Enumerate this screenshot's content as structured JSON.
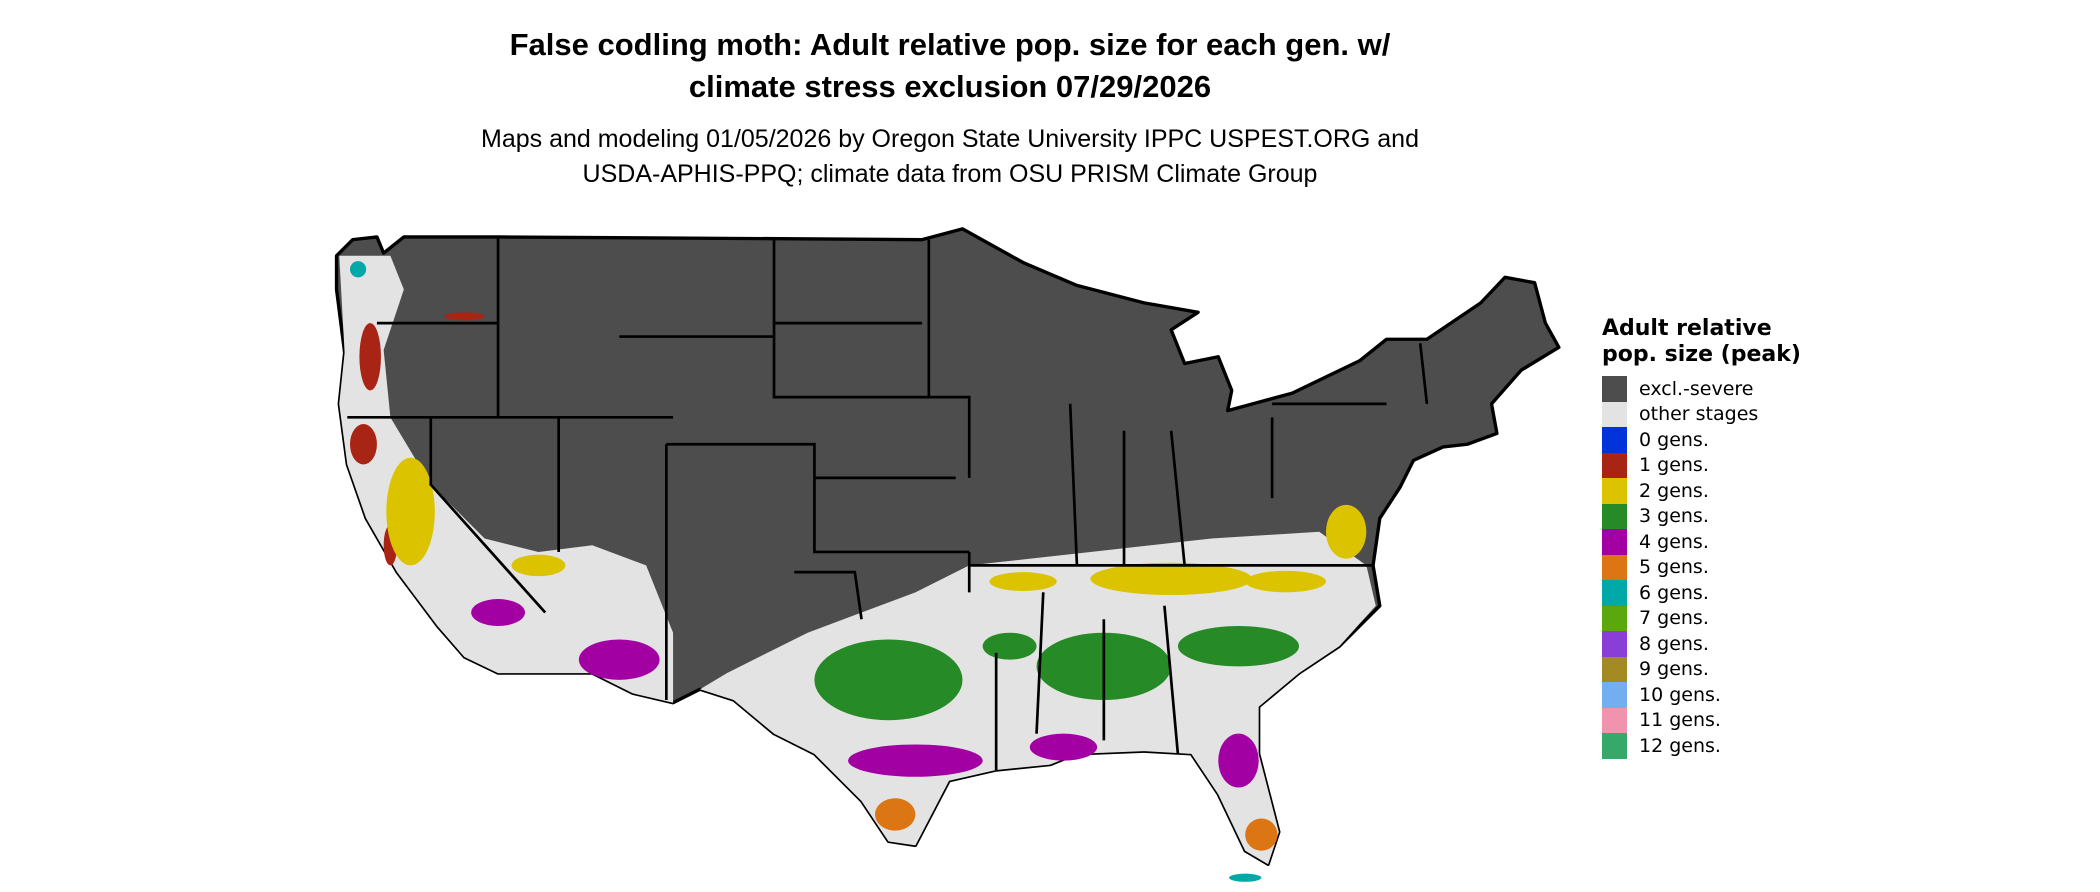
{
  "title_line1": "False codling moth: Adult relative pop. size for each gen. w/",
  "title_line2": "climate stress exclusion 07/29/2026",
  "subtitle_line1": "Maps and modeling 01/05/2026 by Oregon State University IPPC USPEST.ORG and",
  "subtitle_line2": "USDA-APHIS-PPQ; climate data from OSU PRISM Climate Group",
  "legend": {
    "title": "Adult relative pop. size (peak)",
    "items": [
      {
        "label": "excl.-severe",
        "color": "#4d4d4d"
      },
      {
        "label": "other stages",
        "color": "#e3e3e3"
      },
      {
        "label": "0 gens.",
        "color": "#0033d9"
      },
      {
        "label": "1 gens.",
        "color": "#a82516"
      },
      {
        "label": "2 gens.",
        "color": "#dcc300"
      },
      {
        "label": "3 gens.",
        "color": "#268a26"
      },
      {
        "label": "4 gens.",
        "color": "#a300a3"
      },
      {
        "label": "5 gens.",
        "color": "#dc7514"
      },
      {
        "label": "6 gens.",
        "color": "#00a8a8"
      },
      {
        "label": "7 gens.",
        "color": "#5aa80e"
      },
      {
        "label": "8 gens.",
        "color": "#8a3ed8"
      },
      {
        "label": "9 gens.",
        "color": "#a38a22"
      },
      {
        "label": "10 gens.",
        "color": "#72aef0"
      },
      {
        "label": "11 gens.",
        "color": "#f093ae"
      },
      {
        "label": "12 gens.",
        "color": "#35a86a"
      }
    ]
  }
}
